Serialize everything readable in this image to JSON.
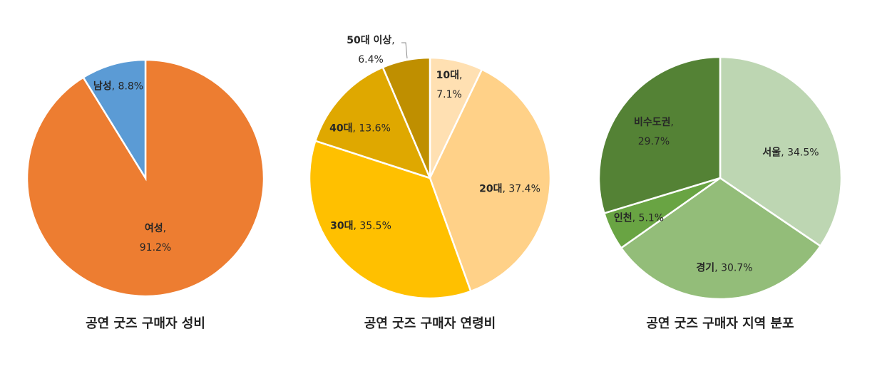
{
  "chart_data": [
    {
      "type": "pie",
      "title": "공연 굿즈 구매자 성비",
      "categories": [
        "여성",
        "남성"
      ],
      "values": [
        91.2,
        8.8
      ],
      "colors": [
        "#ED7D31",
        "#5B9BD5"
      ],
      "start": "12 o'clock, clockwise"
    },
    {
      "type": "pie",
      "title": "공연 굿즈 구매자 연령비",
      "categories": [
        "10대",
        "20대",
        "30대",
        "40대",
        "50대 이상"
      ],
      "values": [
        7.1,
        37.4,
        35.5,
        13.6,
        6.4
      ],
      "colors": [
        "#FFE0B2",
        "#FFD188",
        "#FFC000",
        "#DFA800",
        "#BF8F00"
      ],
      "start": "12 o'clock, clockwise"
    },
    {
      "type": "pie",
      "title": "공연 굿즈 구매자 지역 분포",
      "categories": [
        "서울",
        "경기",
        "인천",
        "비수도권"
      ],
      "values": [
        34.5,
        30.7,
        5.1,
        29.7
      ],
      "colors": [
        "#BDD6B2",
        "#93BD79",
        "#69A443",
        "#548235"
      ],
      "start": "12 o'clock, clockwise"
    }
  ]
}
